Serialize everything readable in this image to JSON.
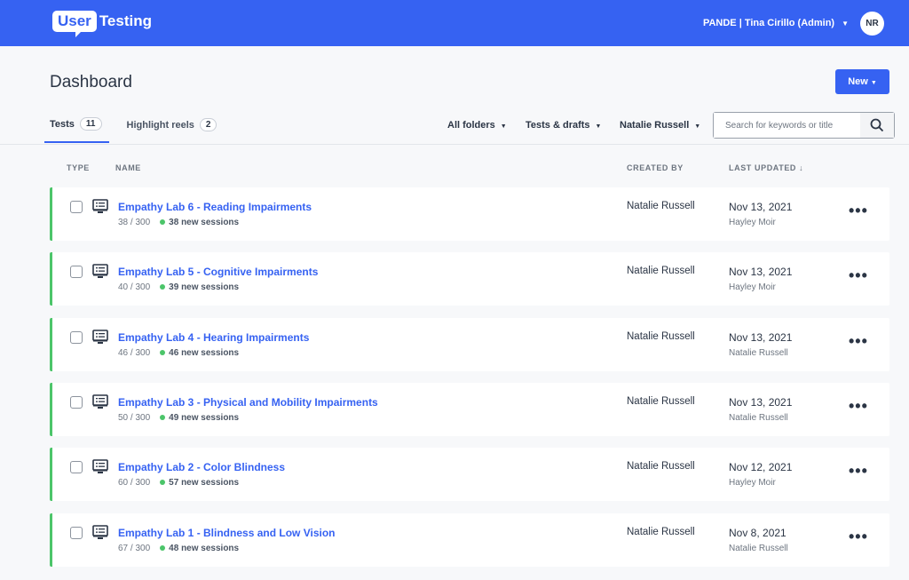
{
  "header": {
    "logo_user": "User",
    "logo_testing": "Testing",
    "account": "PANDE | Tina Cirillo (Admin)",
    "avatar": "NR",
    "brand_color": "#3662f2"
  },
  "page": {
    "title": "Dashboard",
    "new_label": "New"
  },
  "tabs": [
    {
      "label": "Tests",
      "count": "11"
    },
    {
      "label": "Highlight reels",
      "count": "2"
    }
  ],
  "filters": {
    "folders": "All folders",
    "type": "Tests & drafts",
    "owner": "Natalie Russell",
    "search_placeholder": "Search for keywords or title"
  },
  "columns": {
    "type": "TYPE",
    "name": "NAME",
    "created_by": "CREATED BY",
    "last_updated": "LAST UPDATED ↓"
  },
  "rows": [
    {
      "title": "Empathy Lab 6 - Reading Impairments",
      "count": "38 / 300",
      "new_num": "38",
      "new_text": "new sessions",
      "created_by": "Natalie Russell",
      "date": "Nov 13, 2021",
      "updated_by": "Hayley Moir"
    },
    {
      "title": "Empathy Lab 5 - Cognitive Impairments",
      "count": "40 / 300",
      "new_num": "39",
      "new_text": "new sessions",
      "created_by": "Natalie Russell",
      "date": "Nov 13, 2021",
      "updated_by": "Hayley Moir"
    },
    {
      "title": "Empathy Lab 4 - Hearing Impairments",
      "count": "46 / 300",
      "new_num": "46",
      "new_text": "new sessions",
      "created_by": "Natalie Russell",
      "date": "Nov 13, 2021",
      "updated_by": "Natalie Russell"
    },
    {
      "title": "Empathy Lab 3 - Physical and Mobility Impairments",
      "count": "50 / 300",
      "new_num": "49",
      "new_text": "new sessions",
      "created_by": "Natalie Russell",
      "date": "Nov 13, 2021",
      "updated_by": "Natalie Russell"
    },
    {
      "title": "Empathy Lab 2 - Color Blindness",
      "count": "60 / 300",
      "new_num": "57",
      "new_text": "new sessions",
      "created_by": "Natalie Russell",
      "date": "Nov 12, 2021",
      "updated_by": "Hayley Moir"
    },
    {
      "title": "Empathy Lab 1 - Blindness and Low Vision",
      "count": "67 / 300",
      "new_num": "48",
      "new_text": "new sessions",
      "created_by": "Natalie Russell",
      "date": "Nov 8, 2021",
      "updated_by": "Natalie Russell"
    }
  ]
}
